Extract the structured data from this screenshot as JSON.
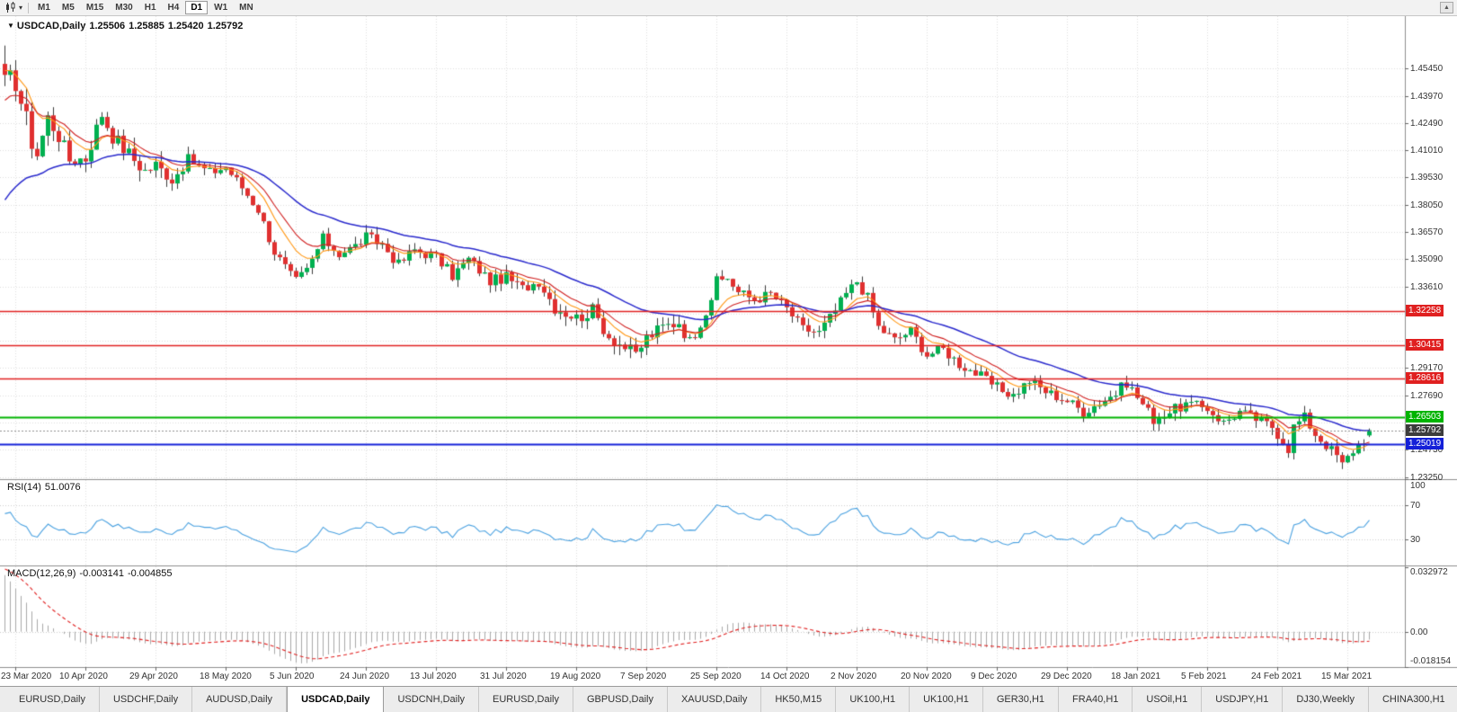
{
  "toolbar": {
    "timeframes": [
      "M1",
      "M5",
      "M15",
      "M30",
      "H1",
      "H4",
      "D1",
      "W1",
      "MN"
    ],
    "active_timeframe": "D1",
    "icons": {
      "chart_type": "candlestick-chart-icon",
      "dropdown_glyph": "▾",
      "scroll_up_glyph": "▲"
    }
  },
  "chart": {
    "symbol": "USDCAD,Daily",
    "quote": {
      "open": "1.25506",
      "high": "1.25885",
      "low": "1.25420",
      "close": "1.25792"
    },
    "indicators": {
      "rsi": {
        "label": "RSI(14)",
        "value": "51.0076"
      },
      "macd": {
        "label": "MACD(12,26,9)",
        "value_main": "-0.003141",
        "value_signal": "-0.004855"
      }
    }
  },
  "chart_data": {
    "type": "candlestick",
    "symbol": "USDCAD",
    "timeframe": "Daily",
    "title": "USDCAD,Daily 1.25506 1.25885 1.25420 1.25792",
    "x_labels": [
      "23 Mar 2020",
      "10 Apr 2020",
      "29 Apr 2020",
      "18 May 2020",
      "5 Jun 2020",
      "24 Jun 2020",
      "13 Jul 2020",
      "31 Jul 2020",
      "19 Aug 2020",
      "7 Sep 2020",
      "25 Sep 2020",
      "14 Oct 2020",
      "2 Nov 2020",
      "20 Nov 2020",
      "9 Dec 2020",
      "29 Dec 2020",
      "18 Jan 2021",
      "5 Feb 2021",
      "24 Feb 2021",
      "15 Mar 2021"
    ],
    "bars_per_label": 13,
    "first_label_bar_index": 2,
    "bar_count": 254,
    "close_path": [
      [
        0,
        1.445
      ],
      [
        2,
        1.449
      ],
      [
        4,
        1.425
      ],
      [
        6,
        1.408
      ],
      [
        8,
        1.428
      ],
      [
        10,
        1.418
      ],
      [
        12,
        1.405
      ],
      [
        15,
        1.406
      ],
      [
        18,
        1.43
      ],
      [
        20,
        1.418
      ],
      [
        23,
        1.408
      ],
      [
        26,
        1.399
      ],
      [
        28,
        1.402
      ],
      [
        31,
        1.394
      ],
      [
        34,
        1.405
      ],
      [
        38,
        1.398
      ],
      [
        41,
        1.401
      ],
      [
        44,
        1.39
      ],
      [
        47,
        1.378
      ],
      [
        50,
        1.355
      ],
      [
        53,
        1.342
      ],
      [
        54,
        1.339
      ],
      [
        56,
        1.345
      ],
      [
        59,
        1.362
      ],
      [
        62,
        1.354
      ],
      [
        65,
        1.358
      ],
      [
        67,
        1.363
      ],
      [
        70,
        1.359
      ],
      [
        73,
        1.348
      ],
      [
        76,
        1.356
      ],
      [
        80,
        1.352
      ],
      [
        83,
        1.342
      ],
      [
        86,
        1.351
      ],
      [
        90,
        1.339
      ],
      [
        93,
        1.341
      ],
      [
        96,
        1.335
      ],
      [
        99,
        1.339
      ],
      [
        102,
        1.325
      ],
      [
        106,
        1.319
      ],
      [
        109,
        1.323
      ],
      [
        112,
        1.309
      ],
      [
        115,
        1.303
      ],
      [
        117,
        1.299
      ],
      [
        119,
        1.308
      ],
      [
        122,
        1.314
      ],
      [
        125,
        1.317
      ],
      [
        127,
        1.306
      ],
      [
        130,
        1.323
      ],
      [
        132,
        1.338
      ],
      [
        134,
        1.341
      ],
      [
        136,
        1.333
      ],
      [
        139,
        1.329
      ],
      [
        142,
        1.332
      ],
      [
        145,
        1.324
      ],
      [
        148,
        1.313
      ],
      [
        151,
        1.311
      ],
      [
        154,
        1.323
      ],
      [
        156,
        1.332
      ],
      [
        158,
        1.339
      ],
      [
        160,
        1.33
      ],
      [
        162,
        1.314
      ],
      [
        165,
        1.307
      ],
      [
        168,
        1.312
      ],
      [
        171,
        1.299
      ],
      [
        174,
        1.302
      ],
      [
        177,
        1.294
      ],
      [
        180,
        1.289
      ],
      [
        184,
        1.281
      ],
      [
        187,
        1.277
      ],
      [
        190,
        1.285
      ],
      [
        193,
        1.279
      ],
      [
        197,
        1.274
      ],
      [
        200,
        1.268
      ],
      [
        203,
        1.273
      ],
      [
        206,
        1.278
      ],
      [
        208,
        1.284
      ],
      [
        210,
        1.276
      ],
      [
        213,
        1.264
      ],
      [
        216,
        1.268
      ],
      [
        219,
        1.272
      ],
      [
        223,
        1.27
      ],
      [
        226,
        1.262
      ],
      [
        229,
        1.268
      ],
      [
        232,
        1.264
      ],
      [
        235,
        1.26
      ],
      [
        236,
        1.256
      ],
      [
        238,
        1.248
      ],
      [
        239,
        1.26
      ],
      [
        241,
        1.265
      ],
      [
        243,
        1.256
      ],
      [
        245,
        1.25
      ],
      [
        247,
        1.244
      ],
      [
        248,
        1.239
      ],
      [
        250,
        1.247
      ],
      [
        252,
        1.253
      ],
      [
        253,
        1.25792
      ]
    ],
    "last_ohlc": {
      "open": 1.25506,
      "high": 1.25885,
      "low": 1.2542,
      "close": 1.25792
    },
    "y_axis": {
      "top": 1.483,
      "bottom": 1.2313,
      "tick_start": 1.4545,
      "tick_step": 0.0148,
      "ticks": [
        "1.45450",
        "1.43970",
        "1.42490",
        "1.41010",
        "1.39530",
        "1.38050",
        "1.36570",
        "1.35090",
        "1.33610",
        "1.29170",
        "1.27690",
        "1.24730",
        "1.23250"
      ]
    },
    "hlines": [
      {
        "value": 1.32258,
        "label": "1.32258",
        "color": "#e02020",
        "width": 1.6
      },
      {
        "value": 1.30415,
        "label": "1.30415",
        "color": "#e02020",
        "width": 1.6
      },
      {
        "value": 1.28616,
        "label": "1.28616",
        "color": "#e02020",
        "width": 1.6
      },
      {
        "value": 1.26503,
        "label": "1.26503",
        "color": "#00b400",
        "width": 2.2
      },
      {
        "value": 1.25019,
        "label": "1.25019",
        "color": "#1420d8",
        "width": 2.2
      }
    ],
    "current_price": {
      "value": 1.25792,
      "label": "1.25792",
      "box_color": "#3c3c3c",
      "line_color": "#909090"
    },
    "moving_averages": [
      {
        "name": "fast",
        "period": 8,
        "color": "#ff9510"
      },
      {
        "name": "medium",
        "period": 13,
        "color": "#d02020"
      },
      {
        "name": "slow",
        "period": 34,
        "color": "#2828cc"
      }
    ],
    "rsi_panel": {
      "label": "RSI(14)",
      "current": 51.0076,
      "range": [
        0,
        100
      ],
      "levels": [
        100,
        70,
        30
      ],
      "line_color": "#4aa1e0"
    },
    "macd_panel": {
      "label": "MACD(12,26,9)",
      "current_macd": -0.003141,
      "current_signal": -0.004855,
      "range": [
        -0.018154,
        0.034
      ],
      "ticks": [
        "0.032972",
        "0.00",
        "-0.018154"
      ],
      "histogram_color": "#a8a8a8",
      "signal_color": "#e02020"
    }
  },
  "tabbar": {
    "active_index": 3,
    "tabs": [
      "EURUSD,Daily",
      "USDCHF,Daily",
      "AUDUSD,Daily",
      "USDCAD,Daily",
      "USDCNH,Daily",
      "EURUSD,Daily",
      "GBPUSD,Daily",
      "XAUUSD,Daily",
      "HK50,M15",
      "UK100,H1",
      "UK100,H1",
      "GER30,H1",
      "FRA40,H1",
      "USOil,H1",
      "USDJPY,H1",
      "DJ30,Weekly",
      "CHINA300,H1"
    ]
  }
}
